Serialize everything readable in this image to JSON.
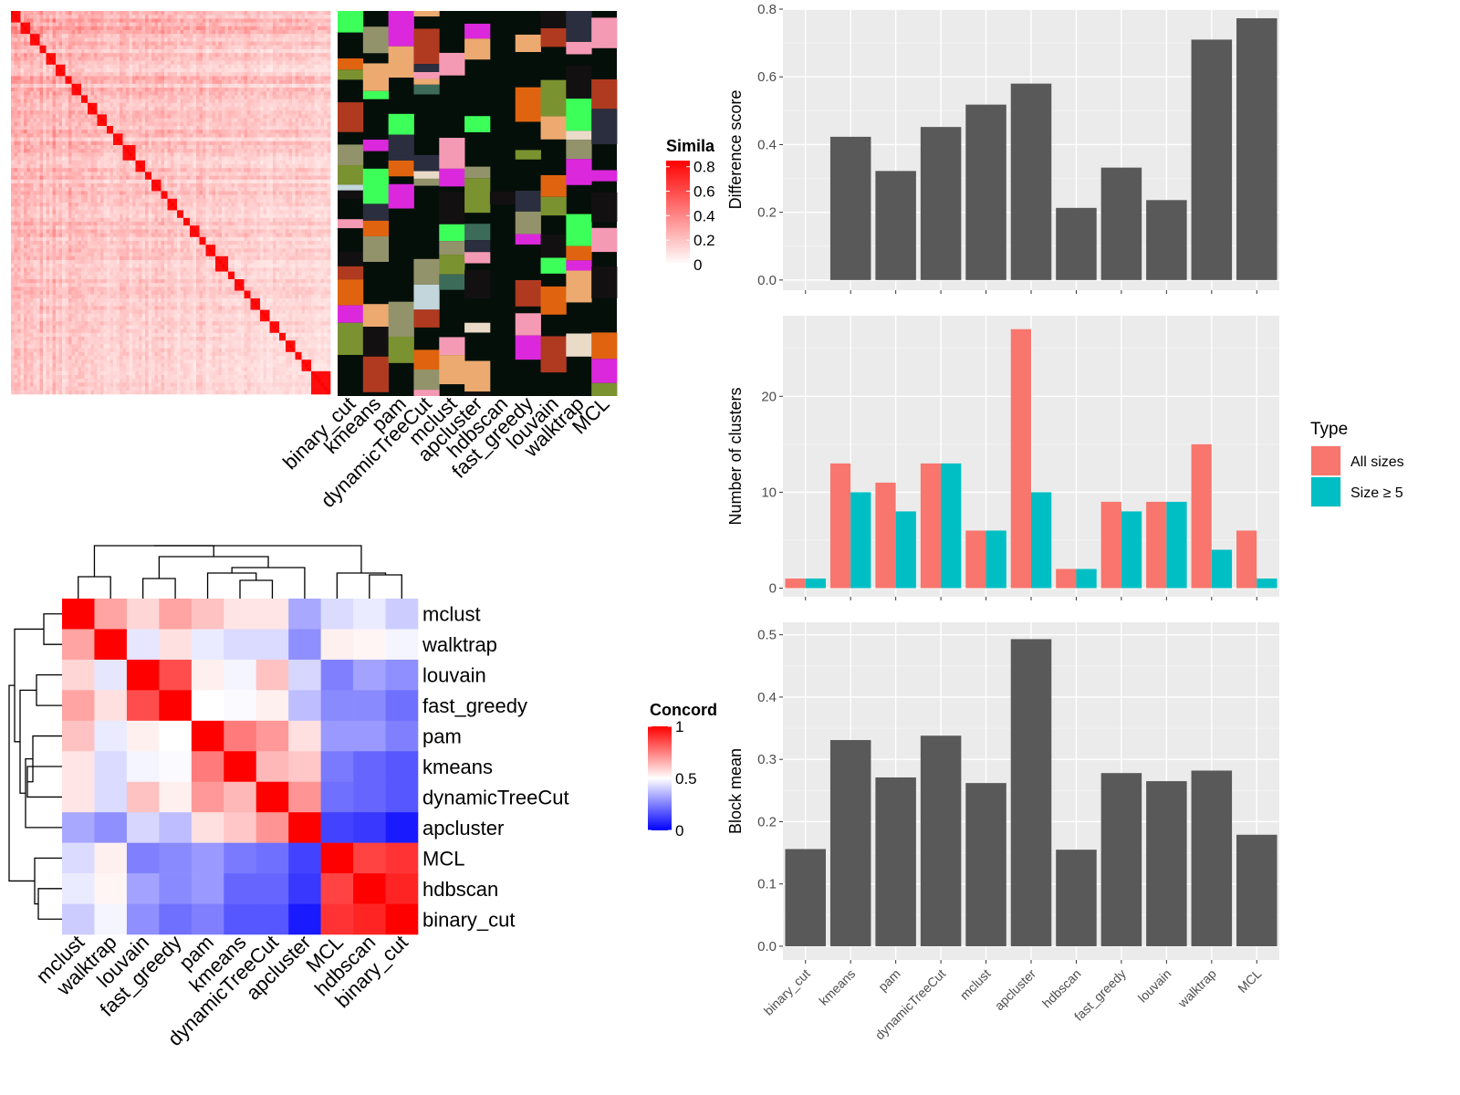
{
  "chart_data": [
    {
      "type": "heatmap",
      "panel": "similarity-matrix",
      "legend_title": "Simila",
      "legend_ticks": [
        "0.8",
        "0.6",
        "0.4",
        "0.2",
        "0"
      ],
      "legend_range": [
        0,
        0.85
      ],
      "colors": {
        "low": "#ffffff",
        "high": "#ff0000"
      },
      "n_terms": 100,
      "diagonal_blocks": [
        3,
        3,
        3,
        2,
        3,
        3,
        2,
        3,
        2,
        3,
        3,
        2,
        3,
        4,
        3,
        2,
        3,
        2,
        3,
        2,
        2,
        3,
        2,
        3,
        4,
        2,
        3,
        2,
        3,
        3,
        3,
        2,
        3,
        2,
        3
      ]
    },
    {
      "type": "heatmap",
      "panel": "cluster-assignment",
      "columns": [
        "binary_cut",
        "kmeans",
        "pam",
        "dynamicTreeCut",
        "mclust",
        "apcluster",
        "hdbscan",
        "fast_greedy",
        "louvain",
        "walktrap",
        "MCL"
      ],
      "background": "#050f0a",
      "palette": [
        "#3dff5a",
        "#2a2e3e",
        "#eadbc8",
        "#e06410",
        "#93936b",
        "#f59ab5",
        "#dc28dc",
        "#7b9230",
        "#c2d6db",
        "#ecaa70",
        "#3c6b5a",
        "#131012",
        "#b03a20"
      ]
    },
    {
      "type": "heatmap",
      "panel": "concordance",
      "legend_title": "Concord",
      "legend_ticks": [
        "1",
        "0.5",
        "0"
      ],
      "legend_range": [
        0,
        1
      ],
      "colors": {
        "low": "#0000ff",
        "mid": "#ffffff",
        "high": "#ff0000"
      },
      "rows": [
        "mclust",
        "walktrap",
        "louvain",
        "fast_greedy",
        "pam",
        "kmeans",
        "dynamicTreeCut",
        "apcluster",
        "MCL",
        "hdbscan",
        "binary_cut"
      ],
      "columns": [
        "mclust",
        "walktrap",
        "louvain",
        "fast_greedy",
        "pam",
        "kmeans",
        "dynamicTreeCut",
        "apcluster",
        "MCL",
        "hdbscan",
        "binary_cut"
      ],
      "values": [
        [
          1.0,
          0.68,
          0.58,
          0.68,
          0.62,
          0.55,
          0.55,
          0.33,
          0.43,
          0.46,
          0.4
        ],
        [
          0.68,
          1.0,
          0.45,
          0.56,
          0.46,
          0.43,
          0.43,
          0.28,
          0.53,
          0.52,
          0.48
        ],
        [
          0.58,
          0.45,
          1.0,
          0.85,
          0.53,
          0.48,
          0.62,
          0.42,
          0.25,
          0.32,
          0.28
        ],
        [
          0.68,
          0.56,
          0.85,
          1.0,
          0.5,
          0.49,
          0.53,
          0.37,
          0.27,
          0.27,
          0.22
        ],
        [
          0.62,
          0.46,
          0.53,
          0.5,
          1.0,
          0.76,
          0.7,
          0.56,
          0.3,
          0.3,
          0.25
        ],
        [
          0.55,
          0.43,
          0.48,
          0.49,
          0.76,
          1.0,
          0.64,
          0.61,
          0.24,
          0.2,
          0.17
        ],
        [
          0.55,
          0.43,
          0.62,
          0.53,
          0.7,
          0.64,
          1.0,
          0.71,
          0.22,
          0.2,
          0.17
        ],
        [
          0.33,
          0.28,
          0.42,
          0.37,
          0.56,
          0.61,
          0.71,
          1.0,
          0.13,
          0.11,
          0.05
        ],
        [
          0.43,
          0.53,
          0.25,
          0.27,
          0.3,
          0.24,
          0.22,
          0.13,
          1.0,
          0.87,
          0.9
        ],
        [
          0.46,
          0.52,
          0.32,
          0.27,
          0.3,
          0.2,
          0.2,
          0.11,
          0.87,
          1.0,
          0.93
        ],
        [
          0.4,
          0.48,
          0.28,
          0.22,
          0.25,
          0.17,
          0.17,
          0.05,
          0.9,
          0.93,
          1.0
        ]
      ],
      "row_dendrogram": true,
      "column_dendrogram": true
    },
    {
      "type": "bar",
      "panel": "difference-score",
      "categories": [
        "binary_cut",
        "kmeans",
        "pam",
        "dynamicTreeCut",
        "mclust",
        "apcluster",
        "hdbscan",
        "fast_greedy",
        "louvain",
        "walktrap",
        "MCL"
      ],
      "values": [
        0.0,
        0.423,
        0.322,
        0.452,
        0.518,
        0.58,
        0.213,
        0.332,
        0.236,
        0.71,
        0.773
      ],
      "ylabel": "Difference score",
      "ylim": [
        -0.03,
        0.8
      ],
      "yticks": [
        0.0,
        0.2,
        0.4,
        0.6,
        0.8
      ],
      "ytick_labels": [
        "0.0",
        "0.2",
        "0.4",
        "0.6",
        "0.8"
      ],
      "bar_color": "#595959",
      "grid": true
    },
    {
      "type": "bar",
      "panel": "number-of-clusters",
      "categories": [
        "binary_cut",
        "kmeans",
        "pam",
        "dynamicTreeCut",
        "mclust",
        "apcluster",
        "hdbscan",
        "fast_greedy",
        "louvain",
        "walktrap",
        "MCL"
      ],
      "series": [
        {
          "name": "All sizes",
          "color": "#f8766d",
          "values": [
            1,
            13,
            11,
            13,
            6,
            27,
            2,
            9,
            9,
            15,
            6
          ]
        },
        {
          "name": "Size ≥ 5",
          "color": "#00bfc4",
          "values": [
            1,
            10,
            8,
            13,
            6,
            10,
            2,
            8,
            9,
            4,
            1
          ]
        }
      ],
      "ylabel": "Number of clusters",
      "ylim": [
        -0.9,
        28.4
      ],
      "yticks": [
        0,
        10,
        20
      ],
      "ytick_labels": [
        "0",
        "10",
        "20"
      ],
      "legend_title": "Type",
      "legend_position": "right",
      "grid": true
    },
    {
      "type": "bar",
      "panel": "block-mean",
      "categories": [
        "binary_cut",
        "kmeans",
        "pam",
        "dynamicTreeCut",
        "mclust",
        "apcluster",
        "hdbscan",
        "fast_greedy",
        "louvain",
        "walktrap",
        "MCL"
      ],
      "values": [
        0.156,
        0.331,
        0.271,
        0.338,
        0.262,
        0.493,
        0.155,
        0.278,
        0.265,
        0.282,
        0.179
      ],
      "ylabel": "Block mean",
      "ylim": [
        -0.022,
        0.52
      ],
      "yticks": [
        0.0,
        0.1,
        0.2,
        0.3,
        0.4,
        0.5
      ],
      "ytick_labels": [
        "0.0",
        "0.1",
        "0.2",
        "0.3",
        "0.4",
        "0.5"
      ],
      "bar_color": "#595959",
      "grid": true
    }
  ]
}
